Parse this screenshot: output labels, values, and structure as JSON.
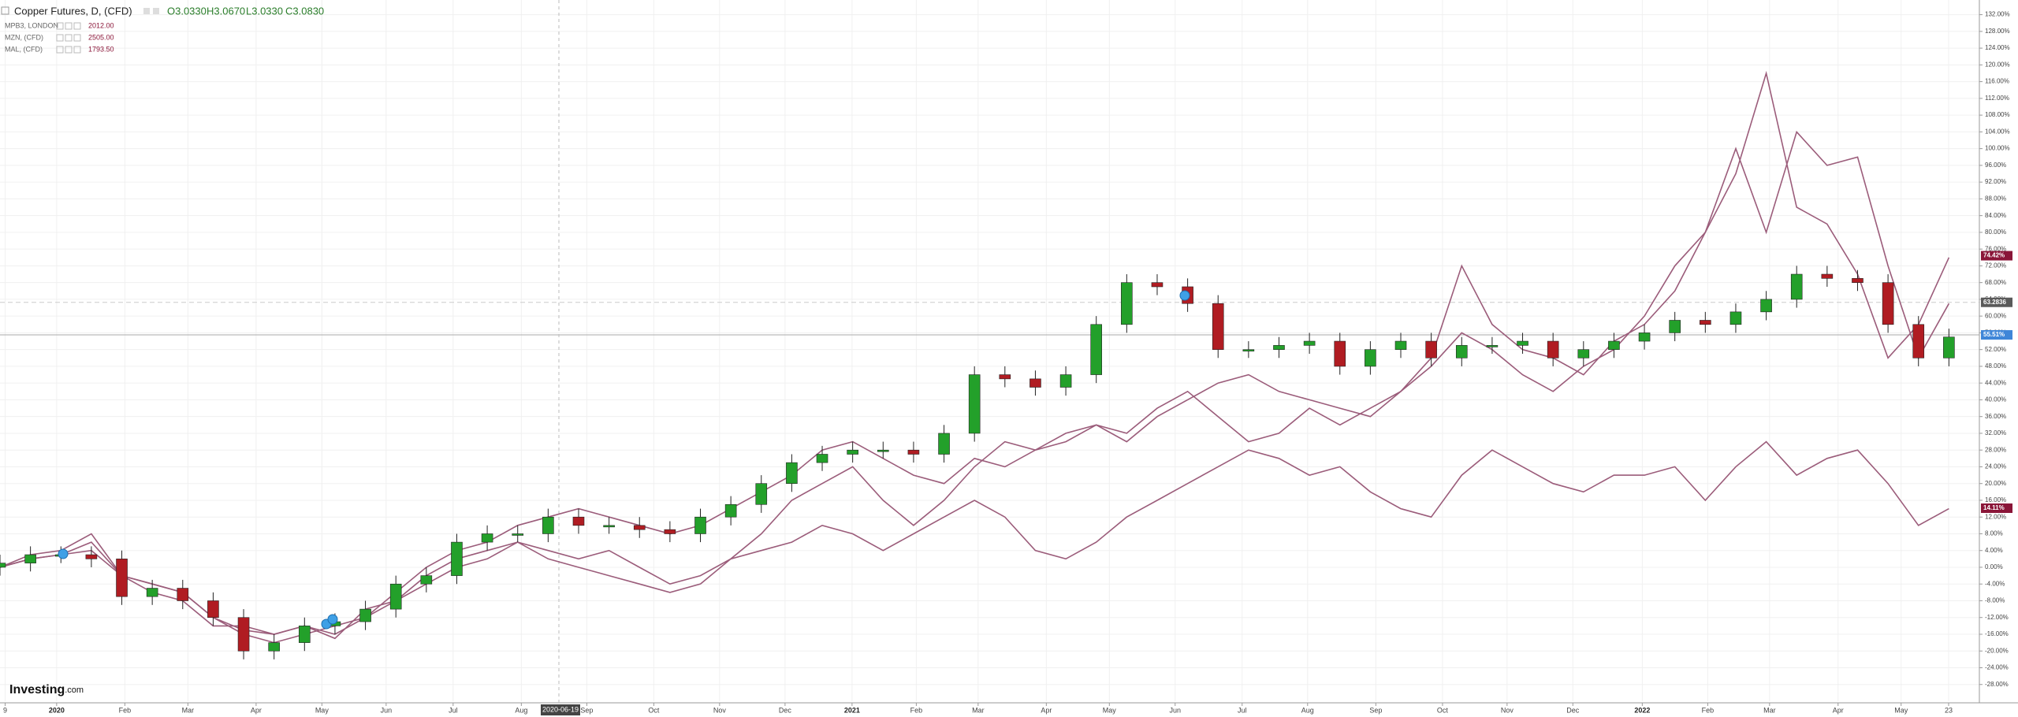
{
  "chart_data": {
    "type": "candlestick",
    "title": "Copper Futures, D, (CFD)",
    "ohlc_readout": [
      "O3.0330",
      "H3.0670",
      "L3.0330",
      "C3.0830"
    ],
    "x": [
      0,
      1,
      2,
      3,
      4,
      5,
      6,
      7,
      8,
      9,
      10,
      11,
      12,
      13,
      14,
      15,
      16,
      17,
      18,
      19,
      20,
      21,
      22,
      23,
      24,
      25,
      26,
      27,
      28,
      29,
      30,
      31,
      32,
      33,
      34,
      35,
      36,
      37,
      38,
      39,
      40,
      41,
      42,
      43,
      44,
      45,
      46,
      47,
      48,
      49,
      50,
      51,
      52,
      53,
      54,
      55,
      56,
      57,
      58,
      59,
      60,
      61,
      62,
      63,
      64
    ],
    "open": [
      0,
      1,
      3,
      3,
      2,
      -7,
      -5,
      -8,
      -12,
      -20,
      -18,
      -14,
      -13,
      -10,
      -4,
      -2,
      6,
      8,
      8,
      12,
      10,
      10,
      9,
      8,
      12,
      15,
      20,
      25,
      27,
      28,
      28,
      27,
      32,
      46,
      45,
      43,
      46,
      58,
      68,
      67,
      63,
      52,
      52,
      53,
      54,
      48,
      52,
      54,
      50,
      53,
      53,
      54,
      50,
      52,
      54,
      56,
      59,
      58,
      61,
      64,
      70,
      69,
      68,
      58,
      50
    ],
    "high": [
      3,
      5,
      5,
      5,
      4,
      -3,
      -3,
      -6,
      -10,
      -16,
      -12,
      -11,
      -8,
      -2,
      0,
      8,
      10,
      10,
      14,
      14,
      12,
      12,
      11,
      14,
      17,
      22,
      27,
      29,
      30,
      30,
      30,
      34,
      48,
      48,
      47,
      48,
      60,
      70,
      70,
      69,
      65,
      54,
      55,
      56,
      56,
      54,
      56,
      56,
      55,
      55,
      56,
      56,
      54,
      56,
      58,
      61,
      61,
      63,
      66,
      72,
      72,
      71,
      70,
      60,
      57
    ],
    "low": [
      -2,
      -1,
      1,
      0,
      -9,
      -9,
      -10,
      -14,
      -22,
      -22,
      -20,
      -16,
      -15,
      -12,
      -6,
      -4,
      4,
      6,
      6,
      8,
      8,
      7,
      6,
      6,
      10,
      13,
      18,
      23,
      25,
      26,
      25,
      25,
      30,
      43,
      41,
      41,
      44,
      56,
      65,
      61,
      50,
      50,
      50,
      51,
      46,
      46,
      50,
      48,
      48,
      51,
      51,
      48,
      48,
      50,
      52,
      54,
      56,
      56,
      59,
      62,
      67,
      66,
      56,
      48,
      48
    ],
    "close": [
      1,
      3,
      3,
      2,
      -7,
      -5,
      -8,
      -12,
      -20,
      -18,
      -14,
      -13,
      -10,
      -4,
      -2,
      6,
      8,
      8,
      12,
      10,
      10,
      9,
      8,
      12,
      15,
      20,
      25,
      27,
      28,
      28,
      27,
      32,
      46,
      45,
      43,
      46,
      58,
      68,
      67,
      63,
      52,
      52,
      53,
      54,
      48,
      52,
      54,
      50,
      53,
      53,
      54,
      50,
      52,
      54,
      56,
      59,
      58,
      61,
      64,
      70,
      69,
      68,
      58,
      50,
      55
    ],
    "up_color": "#23a02a",
    "down_color": "#b01c22",
    "series": [
      {
        "name": "MPB3, LONDON",
        "color": "#9b5c7a",
        "last_value": {
          "value": 2012,
          "label": "2012.00"
        },
        "values": [
          0,
          3,
          4,
          8,
          -2,
          -4,
          -6,
          -12,
          -15,
          -16,
          -14,
          -16,
          -12,
          -6,
          0,
          4,
          6,
          10,
          12,
          14,
          12,
          10,
          8,
          10,
          14,
          18,
          22,
          28,
          30,
          26,
          22,
          20,
          26,
          24,
          28,
          30,
          34,
          30,
          36,
          40,
          44,
          46,
          42,
          40,
          38,
          36,
          42,
          50,
          72,
          58,
          52,
          50,
          46,
          54,
          58,
          66,
          80,
          94,
          118,
          86,
          82,
          70,
          50,
          58,
          74
        ]
      },
      {
        "name": "MZN, (CFD)",
        "color": "#9b5c7a",
        "last_value": {
          "value": 2505,
          "label": "2505.00"
        },
        "values": [
          0,
          2,
          3,
          6,
          -2,
          -6,
          -8,
          -14,
          -14,
          -16,
          -14,
          -17,
          -10,
          -8,
          -4,
          0,
          2,
          6,
          4,
          2,
          4,
          0,
          -4,
          -2,
          2,
          8,
          16,
          20,
          24,
          16,
          10,
          16,
          24,
          30,
          28,
          32,
          34,
          32,
          38,
          42,
          36,
          30,
          32,
          38,
          34,
          38,
          42,
          48,
          56,
          52,
          46,
          42,
          48,
          52,
          60,
          72,
          80,
          100,
          80,
          104,
          96,
          98,
          72,
          50,
          63
        ]
      },
      {
        "name": "MAL, (CFD)",
        "color": "#9b5c7a",
        "last_value": {
          "value": 1793.5,
          "label": "1793.50"
        },
        "values": [
          0,
          2,
          3,
          4,
          -2,
          -4,
          -6,
          -12,
          -16,
          -18,
          -16,
          -14,
          -12,
          -8,
          -2,
          2,
          4,
          6,
          2,
          0,
          -2,
          -4,
          -6,
          -4,
          2,
          4,
          6,
          10,
          8,
          4,
          8,
          12,
          16,
          12,
          4,
          2,
          6,
          12,
          16,
          20,
          24,
          28,
          26,
          22,
          24,
          18,
          14,
          12,
          22,
          28,
          24,
          20,
          18,
          22,
          22,
          24,
          16,
          24,
          30,
          22,
          26,
          28,
          20,
          10,
          14
        ]
      }
    ],
    "price_tags": [
      {
        "value": 74.42,
        "label": "74.42%",
        "color": "#8a1538"
      },
      {
        "value": 63.2836,
        "label": "63.2836",
        "color": "#5a5a5a",
        "line_style": "dashed"
      },
      {
        "value": 55.51,
        "label": "55.51%",
        "color": "#3f86d8",
        "line_style": "solid"
      },
      {
        "value": 14.11,
        "label": "14.11%",
        "color": "#8a1538"
      }
    ],
    "crosshair_label": "2020-06-19",
    "logo": [
      "Investing",
      ".com"
    ],
    "xlim": [
      0,
      65
    ],
    "ylim": [
      -32,
      135.5
    ],
    "grid": true,
    "xticks": [
      {
        "value": 0.17,
        "label": "9"
      },
      {
        "value": 1.86,
        "label": "2020"
      },
      {
        "value": 4.1,
        "label": "Feb"
      },
      {
        "value": 6.17,
        "label": "Mar"
      },
      {
        "value": 8.41,
        "label": "Apr"
      },
      {
        "value": 10.57,
        "label": "May"
      },
      {
        "value": 12.68,
        "label": "Jun"
      },
      {
        "value": 14.88,
        "label": "Jul"
      },
      {
        "value": 17.12,
        "label": "Aug"
      },
      {
        "value": 19.27,
        "label": "Sep"
      },
      {
        "value": 21.47,
        "label": "Oct"
      },
      {
        "value": 23.63,
        "label": "Nov"
      },
      {
        "value": 25.78,
        "label": "Dec"
      },
      {
        "value": 27.98,
        "label": "2021"
      },
      {
        "value": 30.09,
        "label": "Feb"
      },
      {
        "value": 32.12,
        "label": "Mar"
      },
      {
        "value": 34.36,
        "label": "Apr"
      },
      {
        "value": 36.43,
        "label": "May"
      },
      {
        "value": 38.59,
        "label": "Jun"
      },
      {
        "value": 40.79,
        "label": "Jul"
      },
      {
        "value": 42.94,
        "label": "Aug"
      },
      {
        "value": 45.18,
        "label": "Sep"
      },
      {
        "value": 47.37,
        "label": "Oct"
      },
      {
        "value": 49.49,
        "label": "Nov"
      },
      {
        "value": 51.65,
        "label": "Dec"
      },
      {
        "value": 53.93,
        "label": "2022"
      },
      {
        "value": 56.08,
        "label": "Feb"
      },
      {
        "value": 58.11,
        "label": "Mar"
      },
      {
        "value": 60.36,
        "label": "Apr"
      },
      {
        "value": 62.43,
        "label": "May"
      },
      {
        "value": 63.99,
        "label": "23"
      }
    ],
    "yticks": [
      {
        "value": -28,
        "label": "-28.00%"
      },
      {
        "value": -24,
        "label": "-24.00%"
      },
      {
        "value": -20,
        "label": "-20.00%"
      },
      {
        "value": -16,
        "label": "-16.00%"
      },
      {
        "value": -12,
        "label": "-12.00%"
      },
      {
        "value": -8,
        "label": "-8.00%"
      },
      {
        "value": -4,
        "label": "-4.00%"
      },
      {
        "value": 0,
        "label": "0.00%"
      },
      {
        "value": 4,
        "label": "4.00%"
      },
      {
        "value": 8,
        "label": "8.00%"
      },
      {
        "value": 12,
        "label": "12.00%"
      },
      {
        "value": 16,
        "label": "16.00%"
      },
      {
        "value": 20,
        "label": "20.00%"
      },
      {
        "value": 24,
        "label": "24.00%"
      },
      {
        "value": 28,
        "label": "28.00%"
      },
      {
        "value": 32,
        "label": "32.00%"
      },
      {
        "value": 36,
        "label": "36.00%"
      },
      {
        "value": 40,
        "label": "40.00%"
      },
      {
        "value": 44,
        "label": "44.00%"
      },
      {
        "value": 48,
        "label": "48.00%"
      },
      {
        "value": 52,
        "label": "52.00%"
      },
      {
        "value": 56,
        "label": "56.00%"
      },
      {
        "value": 60,
        "label": "60.00%"
      },
      {
        "value": 64,
        "label": "64.00%"
      },
      {
        "value": 68,
        "label": "68.00%"
      },
      {
        "value": 72,
        "label": "72.00%"
      },
      {
        "value": 76,
        "label": "76.00%"
      },
      {
        "value": 80,
        "label": "80.00%"
      },
      {
        "value": 84,
        "label": "84.00%"
      },
      {
        "value": 88,
        "label": "88.00%"
      },
      {
        "value": 92,
        "label": "92.00%"
      },
      {
        "value": 96,
        "label": "96.00%"
      },
      {
        "value": 100,
        "label": "100.00%"
      },
      {
        "value": 104,
        "label": "104.00%"
      },
      {
        "value": 108,
        "label": "108.00%"
      },
      {
        "value": 112,
        "label": "112.00%"
      },
      {
        "value": 116,
        "label": "116.00%"
      },
      {
        "value": 120,
        "label": "120.00%"
      },
      {
        "value": 124,
        "label": "124.00%"
      },
      {
        "value": 128,
        "label": "128.00%"
      },
      {
        "value": 132,
        "label": "132.00%"
      }
    ]
  }
}
